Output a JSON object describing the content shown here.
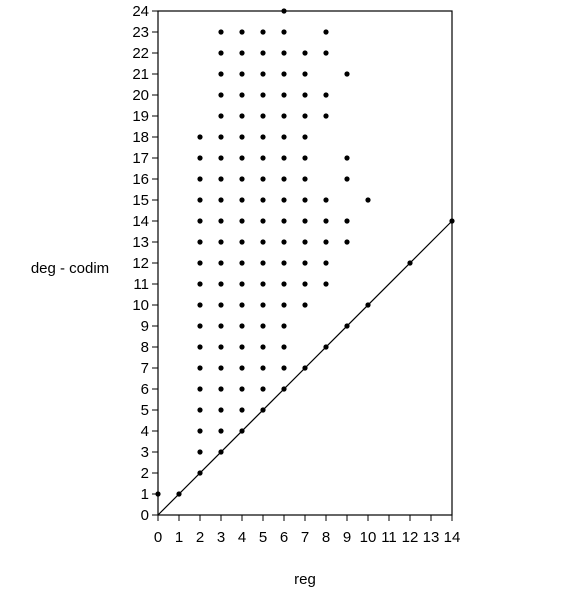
{
  "chart_data": {
    "type": "scatter",
    "title": "",
    "xlabel": "reg",
    "ylabel": "deg - codim",
    "xlim": [
      0,
      14
    ],
    "ylim": [
      0,
      24
    ],
    "x_ticks": [
      "0",
      "1",
      "2",
      "3",
      "4",
      "5",
      "6",
      "7",
      "8",
      "9",
      "10",
      "11",
      "12",
      "13",
      "14"
    ],
    "y_ticks": [
      "0",
      "1",
      "2",
      "3",
      "4",
      "5",
      "6",
      "7",
      "8",
      "9",
      "10",
      "11",
      "12",
      "13",
      "14",
      "15",
      "16",
      "17",
      "18",
      "19",
      "20",
      "21",
      "22",
      "23",
      "24"
    ],
    "grid": false,
    "reference_line": {
      "from": [
        0,
        0
      ],
      "to": [
        14,
        14
      ]
    },
    "columns": [
      {
        "x": 0,
        "ys": [
          1
        ]
      },
      {
        "x": 1,
        "ys": [
          1
        ]
      },
      {
        "x": 2,
        "ys": [
          2,
          3,
          4,
          5,
          6,
          7,
          8,
          9,
          10,
          11,
          12,
          13,
          14,
          15,
          16,
          17,
          18
        ]
      },
      {
        "x": 3,
        "ys": [
          3,
          4,
          5,
          6,
          7,
          8,
          9,
          10,
          11,
          12,
          13,
          14,
          15,
          16,
          17,
          18,
          19,
          20,
          21,
          22,
          23
        ]
      },
      {
        "x": 4,
        "ys": [
          4,
          5,
          6,
          7,
          8,
          9,
          10,
          11,
          12,
          13,
          14,
          15,
          16,
          17,
          18,
          19,
          20,
          21,
          22,
          23
        ]
      },
      {
        "x": 5,
        "ys": [
          5,
          6,
          7,
          8,
          9,
          10,
          11,
          12,
          13,
          14,
          15,
          16,
          17,
          18,
          19,
          20,
          21,
          22,
          23
        ]
      },
      {
        "x": 6,
        "ys": [
          6,
          7,
          8,
          9,
          10,
          11,
          12,
          13,
          14,
          15,
          16,
          17,
          18,
          19,
          20,
          21,
          22,
          23,
          24
        ]
      },
      {
        "x": 7,
        "ys": [
          7,
          10,
          11,
          12,
          13,
          14,
          15,
          16,
          17,
          18,
          19,
          20,
          21,
          22
        ]
      },
      {
        "x": 8,
        "ys": [
          8,
          11,
          12,
          13,
          14,
          15,
          19,
          20,
          22,
          23
        ]
      },
      {
        "x": 9,
        "ys": [
          9,
          13,
          14,
          16,
          17,
          21
        ]
      },
      {
        "x": 10,
        "ys": [
          10,
          15
        ]
      },
      {
        "x": 12,
        "ys": [
          12
        ]
      },
      {
        "x": 14,
        "ys": [
          14
        ]
      }
    ]
  }
}
